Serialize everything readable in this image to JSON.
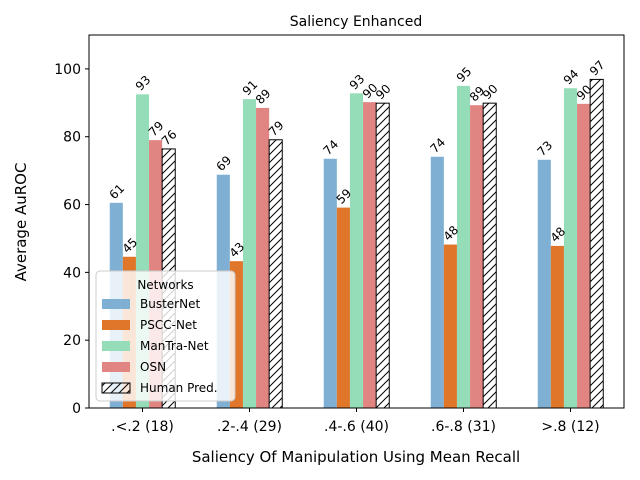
{
  "chart_data": {
    "type": "bar",
    "title": "Saliency Enhanced",
    "xlabel": "Saliency Of Manipulation Using Mean Recall",
    "ylabel": "Average AuROC",
    "ylim": [
      0,
      110
    ],
    "yticks": [
      0,
      20,
      40,
      60,
      80,
      100
    ],
    "grid": false,
    "legend_title": "Networks",
    "legend_position": "lower-left",
    "categories": [
      ".<.2 (18)",
      ".2-.4 (29)",
      ".4-.6 (40)",
      ".6-.8 (31)",
      ">.8 (12)"
    ],
    "series": [
      {
        "name": "BusterNet",
        "color": "#7fafd2",
        "hatch": false,
        "values": [
          60.5,
          68.8,
          73.5,
          74.1,
          73.2
        ],
        "labels": [
          "61",
          "69",
          "74",
          "74",
          "73"
        ]
      },
      {
        "name": "PSCC-Net",
        "color": "#e0762a",
        "hatch": false,
        "values": [
          44.6,
          43.3,
          59.1,
          48.2,
          47.8
        ],
        "labels": [
          "45",
          "43",
          "59",
          "48",
          "48"
        ]
      },
      {
        "name": "ManTra-Net",
        "color": "#95dcb8",
        "hatch": false,
        "values": [
          92.5,
          91.1,
          92.8,
          95.0,
          94.3
        ],
        "labels": [
          "93",
          "91",
          "93",
          "95",
          "94"
        ]
      },
      {
        "name": "OSN",
        "color": "#e08581",
        "hatch": false,
        "values": [
          79.0,
          88.5,
          90.2,
          89.3,
          89.7
        ],
        "labels": [
          "79",
          "89",
          "90",
          "89",
          "90"
        ]
      },
      {
        "name": "Human Pred.",
        "color": "#ffffff",
        "hatch": true,
        "values": [
          76.4,
          79.1,
          89.9,
          89.9,
          96.9
        ],
        "labels": [
          "76",
          "79",
          "90",
          "90",
          "97"
        ]
      }
    ]
  }
}
